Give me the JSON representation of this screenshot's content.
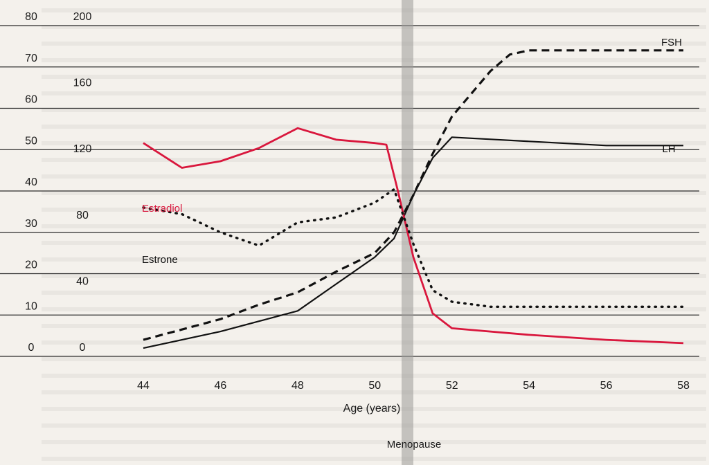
{
  "chart_data": {
    "type": "line",
    "xlabel": "Age (years)",
    "x_ticks": [
      "44",
      "46",
      "48",
      "50",
      "52",
      "54",
      "56",
      "58"
    ],
    "xlim": [
      44,
      58
    ],
    "y_ticks_left": [
      "80",
      "70",
      "60",
      "50",
      "40",
      "30",
      "20",
      "10",
      "0"
    ],
    "y_ticks_right": [
      "200",
      "160",
      "120",
      "80",
      "40",
      "0"
    ],
    "ylim_left": [
      0,
      80
    ],
    "ylim_right": [
      0,
      200
    ],
    "grid": true,
    "annotation": {
      "label": "Menopause",
      "x": 50.5
    },
    "series": [
      {
        "name": "FSH",
        "axis": "left",
        "style": "dashed",
        "color": "#111111",
        "x": [
          44,
          45,
          46,
          47,
          48,
          49,
          50,
          50.5,
          51,
          51.5,
          52,
          53,
          53.5,
          54,
          55,
          56,
          57,
          58
        ],
        "y": [
          4,
          6.5,
          9,
          12.5,
          15.5,
          20.5,
          25,
          30,
          39,
          49,
          58,
          69,
          73,
          74,
          74,
          74,
          74,
          74
        ]
      },
      {
        "name": "LH",
        "axis": "left",
        "style": "solid",
        "color": "#111111",
        "x": [
          44,
          45,
          46,
          47,
          48,
          49,
          50,
          50.5,
          51,
          51.5,
          52,
          53,
          54,
          55,
          56,
          57,
          58
        ],
        "y": [
          2,
          4,
          6,
          8.5,
          11,
          17.5,
          24,
          28.5,
          39,
          48,
          53,
          52.5,
          52,
          51.5,
          51,
          51,
          51
        ]
      },
      {
        "name": "Estradiol",
        "axis": "right",
        "style": "solid",
        "color": "#d9173d",
        "x": [
          44,
          45,
          46,
          47,
          48,
          49,
          50,
          50.3,
          50.6,
          51,
          51.5,
          52,
          54,
          56,
          58
        ],
        "y": [
          129,
          114,
          118,
          126,
          138,
          131,
          129,
          128,
          100,
          60,
          26,
          17,
          13,
          10,
          8
        ]
      },
      {
        "name": "Estrone",
        "axis": "right",
        "style": "dotted",
        "color": "#111111",
        "x": [
          44,
          45,
          46,
          47,
          48,
          49,
          50,
          50.5,
          51,
          51.5,
          52,
          53,
          54,
          56,
          58
        ],
        "y": [
          90,
          86,
          75,
          67,
          81,
          84,
          93,
          101,
          68,
          40,
          33,
          30,
          30,
          30,
          30
        ]
      }
    ]
  }
}
